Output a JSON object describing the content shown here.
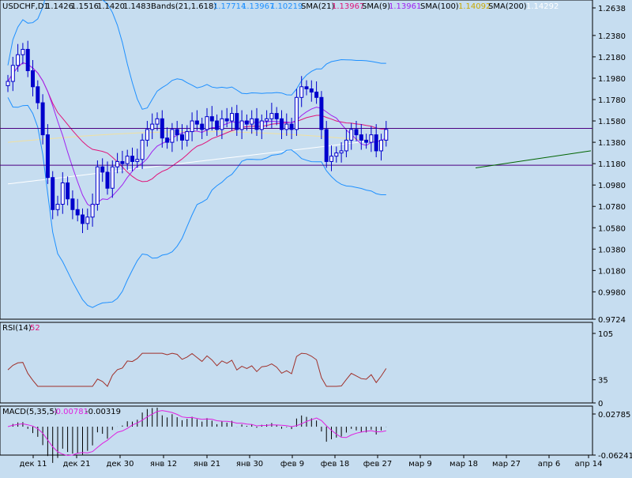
{
  "header": {
    "symbol": "USDCHF,D1",
    "open": "1.1426",
    "high": "1.1516",
    "low": "1.1420",
    "close": "1.1483",
    "bands_label": "Bands(21,1.618)",
    "bands_upper": "1.17714",
    "bands_mid": "1.13967",
    "bands_lower": "1.10219",
    "sma21_label": "SMA(21)",
    "sma21_value": "1.13967",
    "sma9_label": "SMA(9)",
    "sma9_value": "1.13961",
    "sma100_label": "SMA(100)",
    "sma100_value": "1.14092",
    "sma200_label": "SMA(200)",
    "sma200_value": "1.14292"
  },
  "rsi_header": {
    "label": "RSI(14)",
    "value": "52"
  },
  "macd_header": {
    "label": "MACD(5,35,5)",
    "value1": "-0.00781",
    "value2": "-0.00319"
  },
  "colors": {
    "background": "#C6DDF0",
    "candle": "#0000CC",
    "bands": "#1E90FF",
    "sma21": "#E0147A",
    "sma9": "#A020F0",
    "sma100": "#F0E0A0",
    "sma200": "#FFFFFF",
    "rsi": "#A0302A",
    "macd_line": "#E020E0",
    "macd_hist": "#000000",
    "trendline": "#006400",
    "hline": "#4B0082"
  },
  "chart_data": [
    {
      "type": "candlestick",
      "symbol": "USDCHF",
      "timeframe": "D1",
      "ylim": [
        0.9724,
        1.2638
      ],
      "y_ticks": [
        "1.2638",
        "1.2380",
        "1.2180",
        "1.1980",
        "1.1780",
        "1.1580",
        "1.1380",
        "1.1180",
        "1.0980",
        "1.0780",
        "1.0580",
        "1.0380",
        "1.0180",
        "0.9980",
        "0.9724"
      ],
      "x_ticks": [
        "дек 11",
        "дек 21",
        "дек 30",
        "янв 12",
        "янв 21",
        "янв 30",
        "фев 9",
        "фев 18",
        "фев 27",
        "мар 9",
        "мар 18",
        "мар 27",
        "апр 6",
        "апр 14"
      ],
      "horizontal_lines": [
        1.151,
        1.1165
      ],
      "trendline": {
        "from": [
          "мар 18",
          1.114
        ],
        "to": [
          "апр 14",
          1.13
        ]
      },
      "candles_close": [
        1.195,
        1.21,
        1.22,
        1.225,
        1.205,
        1.19,
        1.175,
        1.145,
        1.105,
        1.075,
        1.08,
        1.1,
        1.085,
        1.075,
        1.07,
        1.062,
        1.068,
        1.08,
        1.115,
        1.11,
        1.095,
        1.115,
        1.12,
        1.118,
        1.125,
        1.12,
        1.122,
        1.14,
        1.15,
        1.155,
        1.16,
        1.142,
        1.138,
        1.15,
        1.145,
        1.14,
        1.148,
        1.158,
        1.155,
        1.15,
        1.162,
        1.158,
        1.15,
        1.16,
        1.158,
        1.165,
        1.15,
        1.158,
        1.155,
        1.16,
        1.15,
        1.158,
        1.16,
        1.165,
        1.16,
        1.15,
        1.155,
        1.15,
        1.18,
        1.19,
        1.188,
        1.185,
        1.18,
        1.15,
        1.12,
        1.125,
        1.128,
        1.13,
        1.14,
        1.15,
        1.145,
        1.14,
        1.138,
        1.145,
        1.13,
        1.14,
        1.15
      ]
    },
    {
      "type": "line",
      "name": "RSI(14)",
      "ylim": [
        0,
        105
      ],
      "y_ticks": [
        "105",
        "35",
        "0"
      ],
      "value": 52
    },
    {
      "type": "bar",
      "name": "MACD(5,35,5)",
      "ylim": [
        -0.06241,
        0.02785
      ],
      "y_ticks": [
        "0.02785",
        "-0.06241"
      ]
    }
  ]
}
